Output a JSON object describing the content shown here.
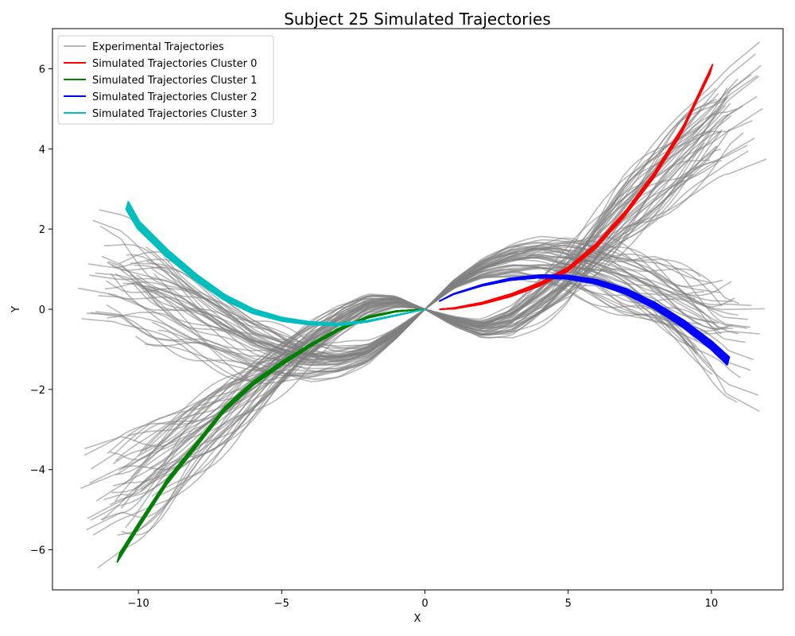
{
  "chart_data": {
    "type": "line",
    "title": "Subject 25 Simulated Trajectories",
    "xlabel": "X",
    "ylabel": "Y",
    "xlim": [
      -13,
      12.5
    ],
    "ylim": [
      -7,
      7
    ],
    "x_ticks": [
      -10,
      -5,
      0,
      5,
      10
    ],
    "y_ticks": [
      -6,
      -4,
      -2,
      0,
      2,
      4,
      6
    ],
    "x_tick_labels": [
      "−10",
      "−5",
      "0",
      "5",
      "10"
    ],
    "y_tick_labels": [
      "−6",
      "−4",
      "−2",
      "0",
      "2",
      "4",
      "6"
    ],
    "grid": false,
    "legend_position": "upper-left",
    "colors": {
      "experimental": "#808080",
      "cluster0": "#ff0000",
      "cluster1": "#008000",
      "cluster2": "#0000ff",
      "cluster3": "#00bfbf"
    },
    "series": [
      {
        "name": "Experimental Trajectories",
        "kind": "experimental",
        "color": "#808080",
        "groups": [
          {
            "label": "to upper-right",
            "count": 45,
            "center": [
              [
                0,
                0
              ],
              [
                1,
                -0.3
              ],
              [
                2,
                -0.5
              ],
              [
                3,
                -0.3
              ],
              [
                4,
                0.2
              ],
              [
                5,
                0.8
              ],
              [
                6,
                1.6
              ],
              [
                7,
                2.4
              ],
              [
                8,
                3.1
              ],
              [
                9,
                3.8
              ],
              [
                10,
                4.4
              ],
              [
                10.8,
                4.9
              ]
            ],
            "spread": 0.55
          },
          {
            "label": "to lower-right",
            "count": 45,
            "center": [
              [
                0,
                0
              ],
              [
                1,
                0.6
              ],
              [
                2,
                1.0
              ],
              [
                3,
                1.2
              ],
              [
                4,
                1.25
              ],
              [
                5,
                1.15
              ],
              [
                6,
                0.9
              ],
              [
                7,
                0.6
              ],
              [
                8,
                0.3
              ],
              [
                9,
                -0.1
              ],
              [
                10,
                -0.5
              ],
              [
                10.8,
                -0.8
              ]
            ],
            "spread": 0.55
          },
          {
            "label": "to lower-left",
            "count": 45,
            "center": [
              [
                0,
                0
              ],
              [
                -1,
                0.2
              ],
              [
                -2,
                0.1
              ],
              [
                -3,
                -0.3
              ],
              [
                -4,
                -0.8
              ],
              [
                -5,
                -1.4
              ],
              [
                -6,
                -2.0
              ],
              [
                -7,
                -2.6
              ],
              [
                -8,
                -3.2
              ],
              [
                -9,
                -3.8
              ],
              [
                -10,
                -4.3
              ],
              [
                -11,
                -4.7
              ]
            ],
            "spread": 0.55
          },
          {
            "label": "to upper-left",
            "count": 45,
            "center": [
              [
                0,
                0
              ],
              [
                -1,
                -0.6
              ],
              [
                -2,
                -1.1
              ],
              [
                -3,
                -1.3
              ],
              [
                -4,
                -1.35
              ],
              [
                -5,
                -1.2
              ],
              [
                -6,
                -1.0
              ],
              [
                -7,
                -0.6
              ],
              [
                -8,
                -0.2
              ],
              [
                -9,
                0.2
              ],
              [
                -10,
                0.5
              ],
              [
                -11,
                0.7
              ]
            ],
            "spread": 0.55
          }
        ]
      },
      {
        "name": "Simulated Trajectories Cluster 0",
        "color": "#ff0000",
        "count": 40,
        "jitter": 0.12,
        "points": [
          [
            0.5,
            0
          ],
          [
            1,
            0.02
          ],
          [
            2,
            0.15
          ],
          [
            3,
            0.35
          ],
          [
            4,
            0.62
          ],
          [
            5,
            1.0
          ],
          [
            6,
            1.6
          ],
          [
            7,
            2.4
          ],
          [
            8,
            3.35
          ],
          [
            9,
            4.5
          ],
          [
            10,
            6.0
          ]
        ]
      },
      {
        "name": "Simulated Trajectories Cluster 1",
        "color": "#008000",
        "count": 40,
        "jitter": 0.12,
        "points": [
          [
            0,
            0
          ],
          [
            -1,
            -0.05
          ],
          [
            -2,
            -0.2
          ],
          [
            -3,
            -0.5
          ],
          [
            -4,
            -0.9
          ],
          [
            -5,
            -1.35
          ],
          [
            -6,
            -1.85
          ],
          [
            -7,
            -2.5
          ],
          [
            -8,
            -3.4
          ],
          [
            -9,
            -4.3
          ],
          [
            -10,
            -5.4
          ],
          [
            -10.7,
            -6.2
          ]
        ]
      },
      {
        "name": "Simulated Trajectories Cluster 2",
        "color": "#0000ff",
        "count": 40,
        "jitter": 0.1,
        "points": [
          [
            0.5,
            0.2
          ],
          [
            1,
            0.38
          ],
          [
            2,
            0.6
          ],
          [
            3,
            0.75
          ],
          [
            4,
            0.82
          ],
          [
            5,
            0.8
          ],
          [
            6,
            0.68
          ],
          [
            7,
            0.45
          ],
          [
            8,
            0.1
          ],
          [
            9,
            -0.35
          ],
          [
            10,
            -0.9
          ],
          [
            10.6,
            -1.3
          ]
        ]
      },
      {
        "name": "Simulated Trajectories Cluster 3",
        "color": "#00bfbf",
        "count": 40,
        "jitter": 0.1,
        "points": [
          [
            0,
            0
          ],
          [
            -1,
            -0.15
          ],
          [
            -2,
            -0.3
          ],
          [
            -3,
            -0.38
          ],
          [
            -4,
            -0.35
          ],
          [
            -5,
            -0.25
          ],
          [
            -6,
            -0.05
          ],
          [
            -7,
            0.3
          ],
          [
            -8,
            0.8
          ],
          [
            -9,
            1.4
          ],
          [
            -10,
            2.1
          ],
          [
            -10.4,
            2.6
          ]
        ]
      }
    ]
  }
}
